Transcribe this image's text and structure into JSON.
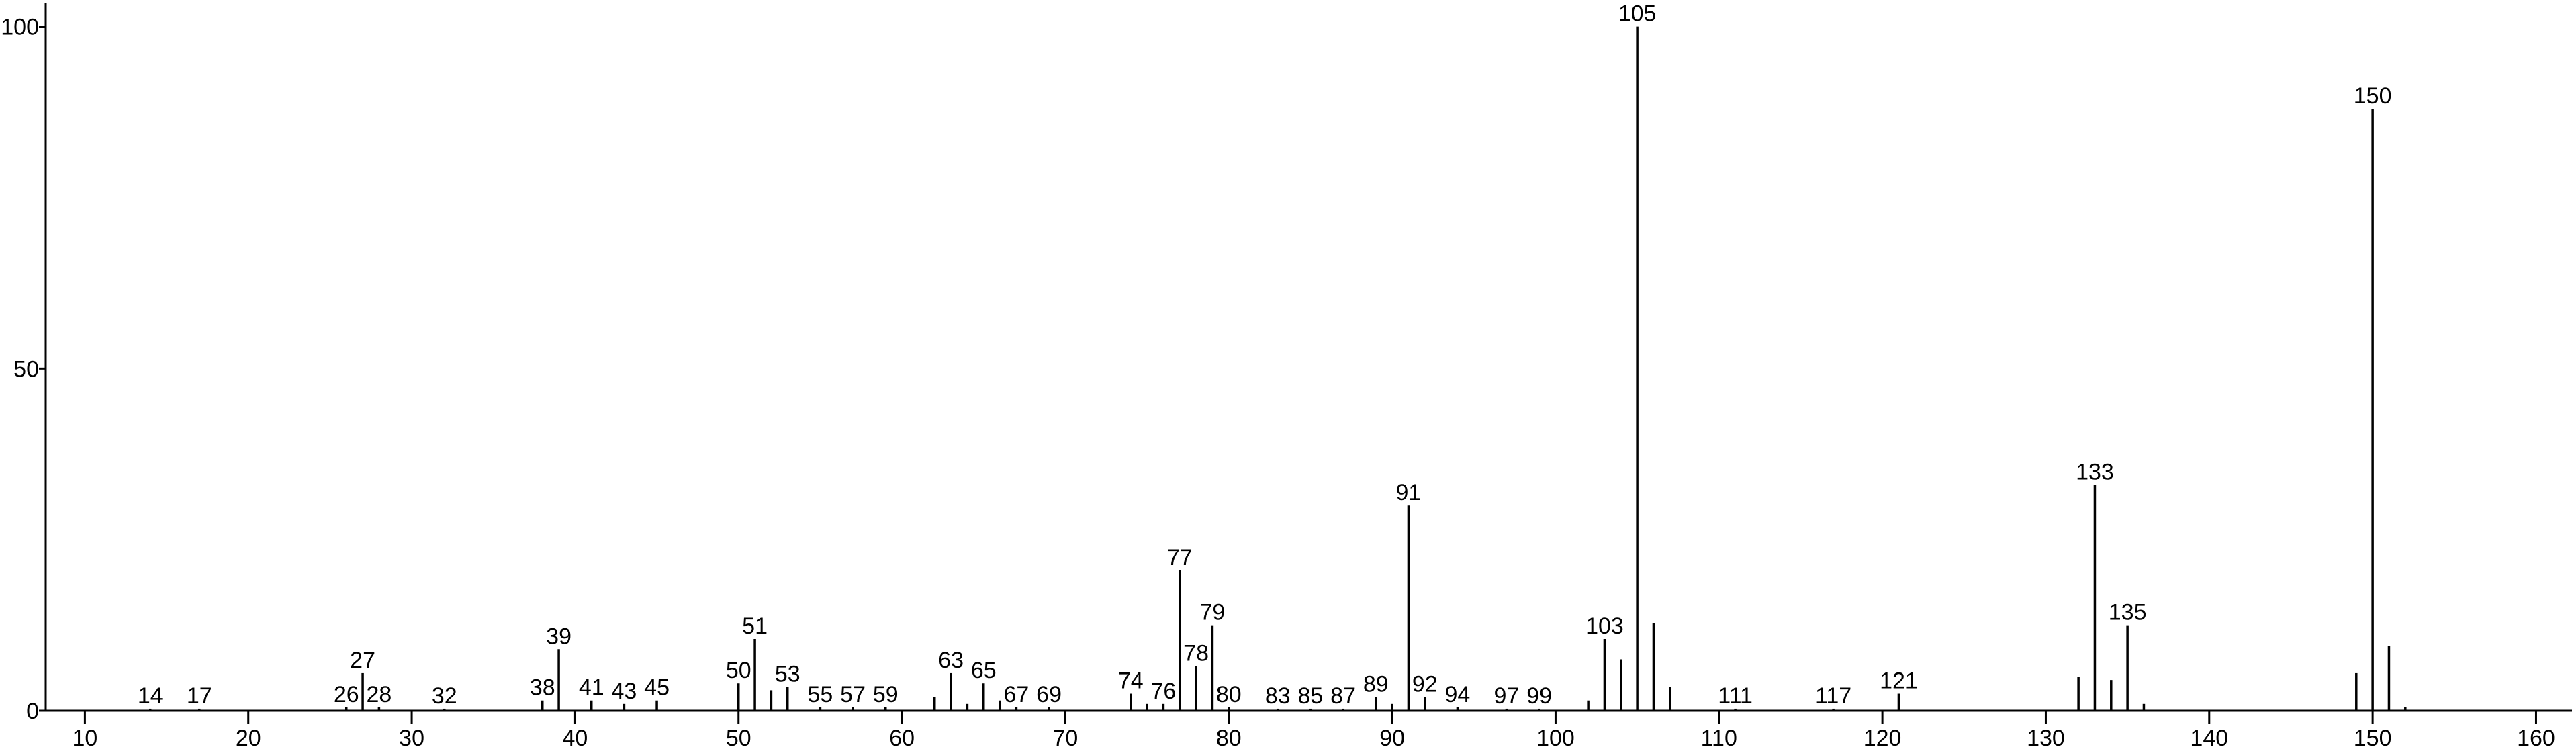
{
  "chart_data": {
    "type": "stick",
    "x": [
      14,
      17,
      26,
      27,
      28,
      32,
      38,
      39,
      41,
      43,
      45,
      50,
      51,
      52,
      53,
      55,
      57,
      59,
      62,
      63,
      64,
      65,
      66,
      67,
      69,
      74,
      75,
      76,
      77,
      78,
      79,
      80,
      83,
      85,
      87,
      89,
      90,
      91,
      92,
      94,
      97,
      99,
      102,
      103,
      104,
      105,
      106,
      107,
      111,
      117,
      121,
      132,
      133,
      134,
      135,
      136,
      149,
      150,
      151,
      152
    ],
    "values": [
      0.3,
      0.3,
      0.5,
      5.5,
      0.5,
      0.3,
      1.5,
      9,
      1.5,
      1,
      1.5,
      4,
      10.5,
      3,
      3.5,
      0.5,
      0.5,
      0.5,
      2,
      5.5,
      1,
      4,
      1.5,
      0.5,
      0.5,
      2.5,
      1,
      1,
      20.5,
      6.5,
      12.5,
      0.5,
      0.3,
      0.3,
      0.3,
      2,
      1,
      30,
      2,
      0.5,
      0.3,
      0.3,
      1.5,
      10.5,
      7.5,
      100,
      12.8,
      3.5,
      0.3,
      0.3,
      2.5,
      5,
      33,
      4.5,
      12.5,
      1,
      5.5,
      88,
      9.5,
      0.5
    ],
    "labels": [
      "14",
      "17",
      "26",
      "27",
      "28",
      "32",
      "38",
      "39",
      "41",
      "43",
      "45",
      "50",
      "51",
      null,
      "53",
      "55",
      "57",
      "59",
      null,
      "63",
      null,
      "65",
      null,
      "67",
      "69",
      "74",
      null,
      "76",
      "77",
      "78",
      "79",
      "80",
      "83",
      "85",
      "87",
      "89",
      null,
      "91",
      "92",
      "94",
      "97",
      "99",
      null,
      "103",
      null,
      "105",
      null,
      null,
      "111",
      "117",
      "121",
      null,
      "133",
      null,
      "135",
      null,
      null,
      "150",
      null,
      null
    ],
    "color": "#000000",
    "xlim": [
      7.6,
      162.2
    ],
    "xticks": [
      10,
      20,
      30,
      40,
      50,
      60,
      70,
      80,
      90,
      100,
      110,
      120,
      130,
      140,
      150,
      160
    ],
    "ylim": [
      0,
      103.5
    ],
    "yticks": [
      0,
      50,
      100
    ],
    "grid": false
  }
}
